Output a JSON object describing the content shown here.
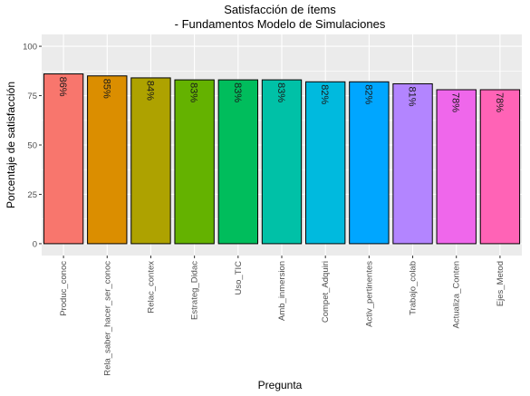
{
  "chart_data": {
    "type": "bar",
    "title": "Satisfacción de ítems",
    "subtitle": "- Fundamentos Modelo de Simulaciones",
    "xlabel": "Pregunta",
    "ylabel": "Porcentaje de satisfacción",
    "categories": [
      "Produc_conoc",
      "Rela_saber_hacer_ser_conoc",
      "Relac_contex",
      "Estrateg_Didac",
      "Uso_TIC",
      "Amb_inmersion",
      "Compet_Adquiri",
      "Activ_pertinentes",
      "Trabajo_colab",
      "Actualiza_Conten",
      "Ejes_Metod"
    ],
    "values": [
      86,
      85,
      84,
      83,
      83,
      83,
      82,
      82,
      81,
      78,
      78
    ],
    "data_labels": [
      "86%",
      "85%",
      "84%",
      "83%",
      "83%",
      "83%",
      "82%",
      "82%",
      "81%",
      "78%",
      "78%"
    ],
    "colors": [
      "#F8766D",
      "#DB8E00",
      "#AEA200",
      "#64B200",
      "#00BD5C",
      "#00C1A7",
      "#00BADE",
      "#00A6FF",
      "#B385FF",
      "#EF67EB",
      "#FF63B6"
    ],
    "ylim": [
      -6,
      106
    ],
    "yticks": [
      0,
      25,
      50,
      75,
      100
    ],
    "ytick_labels": [
      "0",
      "25",
      "50",
      "75",
      "100"
    ],
    "grid": true,
    "panel_background": "#EBEBEB",
    "grid_color": "#FFFFFF",
    "bar_outline": "#000000"
  }
}
